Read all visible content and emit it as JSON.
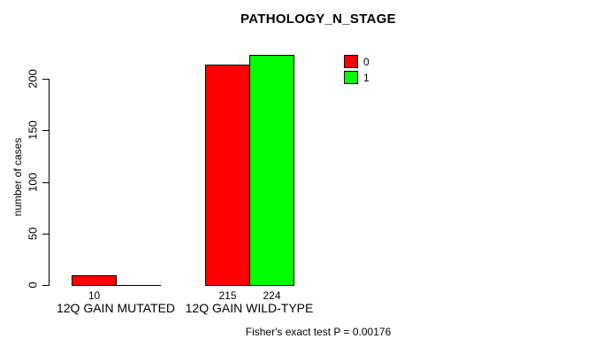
{
  "chart_data": {
    "type": "bar",
    "title": "PATHOLOGY_N_STAGE",
    "ylabel": "number of cases",
    "xlabel": "",
    "ylim": [
      0,
      200
    ],
    "yticks": [
      0,
      50,
      100,
      150,
      200
    ],
    "grid": false,
    "categories": [
      "12Q GAIN MUTATED",
      "12Q GAIN WILD-TYPE"
    ],
    "series": [
      {
        "name": "0",
        "color": "#ff0000",
        "values": [
          10,
          215
        ]
      },
      {
        "name": "1",
        "color": "#00ff00",
        "values": [
          0,
          224
        ]
      }
    ],
    "bar_value_labels": [
      [
        "10",
        ""
      ],
      [
        "215",
        "224"
      ]
    ],
    "legend": {
      "position": "top-right",
      "entries": [
        {
          "label": "0",
          "color": "#ff0000"
        },
        {
          "label": "1",
          "color": "#00ff00"
        }
      ]
    },
    "annotation": "Fisher's exact test P = 0.00176"
  }
}
